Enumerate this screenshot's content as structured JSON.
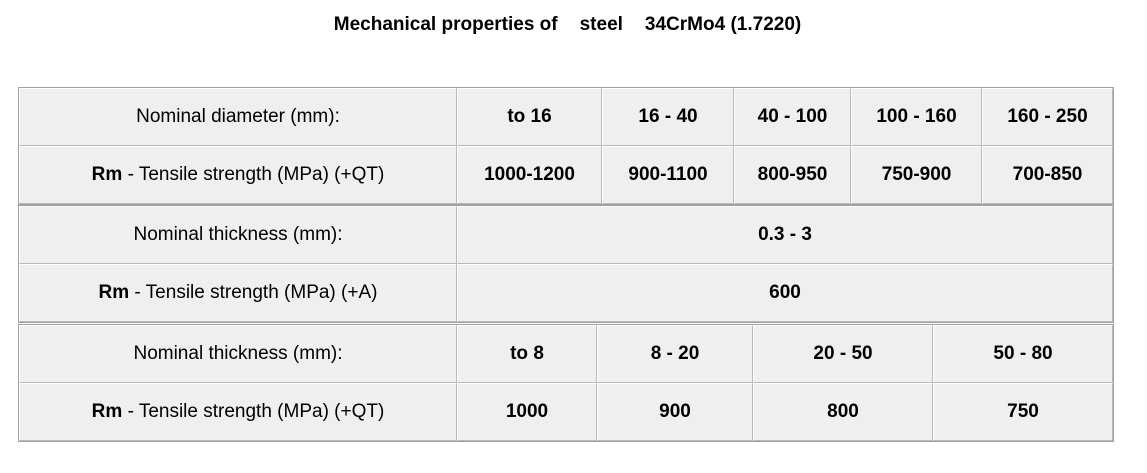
{
  "title": {
    "parts": [
      "Mechanical properties of",
      "steel",
      "34CrMo4 (1.7220)"
    ]
  },
  "tables": [
    {
      "header": {
        "label": "Nominal diameter (mm):",
        "values": [
          "to 16",
          "16 - 40",
          "40 - 100",
          "100 - 160",
          "160 - 250"
        ]
      },
      "row": {
        "label": {
          "bold": "Rm",
          "text": "- Tensile strength (MPa) (+QT)"
        },
        "values": [
          "1000-1200",
          "900-1100",
          "800-950",
          "750-900",
          "700-850"
        ]
      }
    },
    {
      "header": {
        "label": "Nominal thickness (mm):",
        "values": [
          "0.3 - 3"
        ]
      },
      "row": {
        "label": {
          "bold": "Rm",
          "text": "- Tensile strength (MPa) (+A)"
        },
        "values": [
          "600"
        ]
      }
    },
    {
      "header": {
        "label": "Nominal thickness (mm):",
        "values": [
          "to 8",
          "8 - 20",
          "20 - 50",
          "50 - 80"
        ]
      },
      "row": {
        "label": {
          "bold": "Rm",
          "text": "- Tensile strength (MPa) (+QT)"
        },
        "values": [
          "1000",
          "900",
          "800",
          "750"
        ]
      }
    }
  ]
}
